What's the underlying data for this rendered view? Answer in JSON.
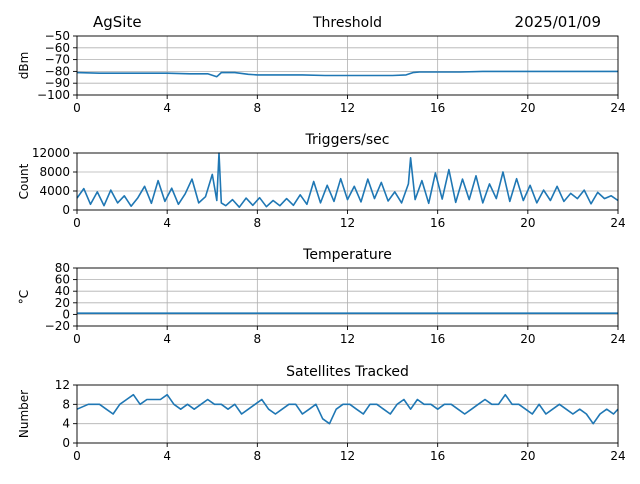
{
  "header": {
    "site": "AgSite",
    "date": "2025/01/09"
  },
  "colors": {
    "series": "#1f77b4",
    "grid": "#b0b0b0"
  },
  "chart_data": [
    {
      "type": "line",
      "title": "Threshold",
      "xlabel": "",
      "ylabel": "dBm",
      "xlim": [
        0,
        24
      ],
      "ylim": [
        -100,
        -50
      ],
      "xticks": [
        0,
        4,
        8,
        12,
        16,
        20,
        24
      ],
      "yticks": [
        -100,
        -90,
        -80,
        -70,
        -60,
        -50
      ],
      "grid": true,
      "series": [
        {
          "x": [
            0,
            1,
            2,
            3,
            4,
            5,
            5.8,
            6.2,
            6.4,
            7,
            7.6,
            8,
            9,
            10,
            11,
            12,
            13,
            14,
            14.6,
            14.9,
            15.2,
            16,
            17,
            18,
            19,
            20,
            21,
            22,
            23,
            24
          ],
          "values": [
            -81,
            -81.5,
            -81.5,
            -81.5,
            -81.5,
            -82,
            -82,
            -84.5,
            -81,
            -81,
            -82.5,
            -83,
            -83,
            -83,
            -83.5,
            -83.5,
            -83.5,
            -83.5,
            -83,
            -81,
            -80.5,
            -80.5,
            -80.5,
            -80,
            -80,
            -80,
            -80,
            -80,
            -80,
            -80
          ]
        }
      ]
    },
    {
      "type": "line",
      "title": "Triggers/sec",
      "xlabel": "",
      "ylabel": "Count",
      "xlim": [
        0,
        24
      ],
      "ylim": [
        0,
        12000
      ],
      "xticks": [
        0,
        4,
        8,
        12,
        16,
        20,
        24
      ],
      "yticks": [
        0,
        4000,
        8000,
        12000
      ],
      "grid": true,
      "series": [
        {
          "x": [
            0,
            0.3,
            0.6,
            0.9,
            1.2,
            1.5,
            1.8,
            2.1,
            2.4,
            2.7,
            3.0,
            3.3,
            3.6,
            3.9,
            4.2,
            4.5,
            4.8,
            5.1,
            5.4,
            5.7,
            6.0,
            6.2,
            6.3,
            6.4,
            6.6,
            6.9,
            7.2,
            7.5,
            7.8,
            8.1,
            8.4,
            8.7,
            9.0,
            9.3,
            9.6,
            9.9,
            10.2,
            10.5,
            10.8,
            11.1,
            11.4,
            11.7,
            12.0,
            12.3,
            12.6,
            12.9,
            13.2,
            13.5,
            13.8,
            14.1,
            14.4,
            14.7,
            14.8,
            15.0,
            15.3,
            15.6,
            15.9,
            16.2,
            16.5,
            16.8,
            17.1,
            17.4,
            17.7,
            18.0,
            18.3,
            18.6,
            18.9,
            19.2,
            19.5,
            19.8,
            20.1,
            20.4,
            20.7,
            21.0,
            21.3,
            21.6,
            21.9,
            22.2,
            22.5,
            22.8,
            23.1,
            23.4,
            23.7,
            24.0
          ],
          "values": [
            2500,
            4500,
            1200,
            3800,
            900,
            4200,
            1500,
            3000,
            800,
            2600,
            5000,
            1400,
            6200,
            1800,
            4600,
            1200,
            3400,
            6500,
            1500,
            2800,
            7500,
            2000,
            12000,
            1500,
            900,
            2200,
            600,
            2500,
            1000,
            2600,
            700,
            2000,
            900,
            2400,
            1000,
            3200,
            1200,
            6000,
            1500,
            5200,
            1800,
            6600,
            2200,
            5000,
            1700,
            6500,
            2400,
            5800,
            1900,
            3800,
            1500,
            5500,
            11000,
            2200,
            6200,
            1400,
            7800,
            2300,
            8500,
            1600,
            6500,
            2200,
            7200,
            1500,
            5500,
            2400,
            8000,
            1800,
            6600,
            2000,
            5200,
            1500,
            4200,
            2000,
            5000,
            1800,
            3500,
            2400,
            4200,
            1300,
            3700,
            2400,
            3000,
            2000
          ]
        }
      ]
    },
    {
      "type": "line",
      "title": "Temperature",
      "xlabel": "",
      "ylabel": "°C",
      "xlim": [
        0,
        24
      ],
      "ylim": [
        -20,
        80
      ],
      "xticks": [
        0,
        4,
        8,
        12,
        16,
        20,
        24
      ],
      "yticks": [
        -20,
        0,
        20,
        40,
        60,
        80
      ],
      "grid": true,
      "series": [
        {
          "x": [
            0,
            24
          ],
          "values": [
            2,
            2
          ]
        }
      ]
    },
    {
      "type": "line",
      "title": "Satellites Tracked",
      "xlabel": "",
      "ylabel": "Number",
      "xlim": [
        0,
        24
      ],
      "ylim": [
        0,
        12
      ],
      "xticks": [
        0,
        4,
        8,
        12,
        16,
        20,
        24
      ],
      "yticks": [
        0,
        4,
        8,
        12
      ],
      "grid": true,
      "series": [
        {
          "x": [
            0,
            0.5,
            1.0,
            1.3,
            1.6,
            1.9,
            2.2,
            2.5,
            2.8,
            3.1,
            3.4,
            3.7,
            4.0,
            4.3,
            4.6,
            4.9,
            5.2,
            5.5,
            5.8,
            6.1,
            6.4,
            6.7,
            7.0,
            7.3,
            7.6,
            7.9,
            8.2,
            8.5,
            8.8,
            9.1,
            9.4,
            9.7,
            10.0,
            10.3,
            10.6,
            10.9,
            11.2,
            11.5,
            11.8,
            12.1,
            12.4,
            12.7,
            13.0,
            13.3,
            13.6,
            13.9,
            14.2,
            14.5,
            14.8,
            15.1,
            15.4,
            15.7,
            16.0,
            16.3,
            16.6,
            16.9,
            17.2,
            17.5,
            17.8,
            18.1,
            18.4,
            18.7,
            19.0,
            19.3,
            19.6,
            19.9,
            20.2,
            20.5,
            20.8,
            21.1,
            21.4,
            21.7,
            22.0,
            22.3,
            22.6,
            22.9,
            23.2,
            23.5,
            23.8,
            24.0
          ],
          "values": [
            7,
            8,
            8,
            7,
            6,
            8,
            9,
            10,
            8,
            9,
            9,
            9,
            10,
            8,
            7,
            8,
            7,
            8,
            9,
            8,
            8,
            7,
            8,
            6,
            7,
            8,
            9,
            7,
            6,
            7,
            8,
            8,
            6,
            7,
            8,
            5,
            4,
            7,
            8,
            8,
            7,
            6,
            8,
            8,
            7,
            6,
            8,
            9,
            7,
            9,
            8,
            8,
            7,
            8,
            8,
            7,
            6,
            7,
            8,
            9,
            8,
            8,
            10,
            8,
            8,
            7,
            6,
            8,
            6,
            7,
            8,
            7,
            6,
            7,
            6,
            4,
            6,
            7,
            6,
            7
          ]
        }
      ]
    }
  ]
}
